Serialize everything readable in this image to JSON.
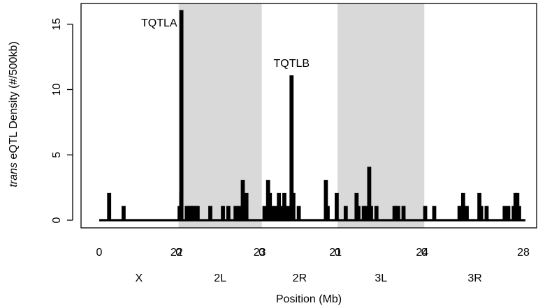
{
  "chart_data": {
    "type": "line",
    "ylabel": {
      "italic": "trans",
      "rest": " eQTL Density (#/500kb)"
    },
    "xlabel": "Position (Mb)",
    "ylim": [
      0,
      16
    ],
    "yticks": [
      0,
      5,
      10,
      15
    ],
    "colors": {
      "line": "#000000",
      "shade": "#d9d9d9"
    },
    "chromosomes": [
      {
        "name": "X",
        "length": 22,
        "shaded": false,
        "start_label": "0",
        "end_label": "22"
      },
      {
        "name": "2L",
        "length": 23,
        "shaded": true,
        "start_label": "0",
        "end_label": "23"
      },
      {
        "name": "2R",
        "length": 21,
        "shaded": false,
        "start_label": "0",
        "end_label": "21"
      },
      {
        "name": "3L",
        "length": 24,
        "shaded": true,
        "start_label": "0",
        "end_label": "24"
      },
      {
        "name": "3R",
        "length": 28,
        "shaded": false,
        "start_label": "0",
        "end_label": "28"
      }
    ],
    "peaks": [
      {
        "chrom": "X",
        "pos": 2.5,
        "count": 2
      },
      {
        "chrom": "X",
        "pos": 6.5,
        "count": 1
      },
      {
        "chrom": "X",
        "pos": 22.5,
        "count": 2
      },
      {
        "chrom": "2L",
        "pos": 0.0,
        "count": 1
      },
      {
        "chrom": "2L",
        "pos": 0.5,
        "count": 16
      },
      {
        "chrom": "2L",
        "pos": 2.0,
        "count": 1
      },
      {
        "chrom": "2L",
        "pos": 2.5,
        "count": 1
      },
      {
        "chrom": "2L",
        "pos": 3.0,
        "count": 1
      },
      {
        "chrom": "2L",
        "pos": 3.5,
        "count": 1
      },
      {
        "chrom": "2L",
        "pos": 4.0,
        "count": 1
      },
      {
        "chrom": "2L",
        "pos": 4.5,
        "count": 1
      },
      {
        "chrom": "2L",
        "pos": 5.0,
        "count": 1
      },
      {
        "chrom": "2L",
        "pos": 8.5,
        "count": 1
      },
      {
        "chrom": "2L",
        "pos": 12.0,
        "count": 1
      },
      {
        "chrom": "2L",
        "pos": 13.5,
        "count": 1
      },
      {
        "chrom": "2L",
        "pos": 15.5,
        "count": 1
      },
      {
        "chrom": "2L",
        "pos": 16.5,
        "count": 1
      },
      {
        "chrom": "2L",
        "pos": 17.5,
        "count": 3
      },
      {
        "chrom": "2L",
        "pos": 18.5,
        "count": 2
      },
      {
        "chrom": "2R",
        "pos": 0.5,
        "count": 1
      },
      {
        "chrom": "2R",
        "pos": 1.5,
        "count": 3
      },
      {
        "chrom": "2R",
        "pos": 2.0,
        "count": 2
      },
      {
        "chrom": "2R",
        "pos": 2.5,
        "count": 1
      },
      {
        "chrom": "2R",
        "pos": 3.5,
        "count": 1
      },
      {
        "chrom": "2R",
        "pos": 4.5,
        "count": 2
      },
      {
        "chrom": "2R",
        "pos": 5.0,
        "count": 1
      },
      {
        "chrom": "2R",
        "pos": 5.5,
        "count": 1
      },
      {
        "chrom": "2R",
        "pos": 6.0,
        "count": 2
      },
      {
        "chrom": "2R",
        "pos": 7.0,
        "count": 1
      },
      {
        "chrom": "2R",
        "pos": 8.0,
        "count": 11
      },
      {
        "chrom": "2R",
        "pos": 8.5,
        "count": 2
      },
      {
        "chrom": "2R",
        "pos": 10.0,
        "count": 1
      },
      {
        "chrom": "2R",
        "pos": 17.5,
        "count": 3
      },
      {
        "chrom": "2R",
        "pos": 18.0,
        "count": 1
      },
      {
        "chrom": "2R",
        "pos": 20.5,
        "count": 2
      },
      {
        "chrom": "3L",
        "pos": 2.0,
        "count": 1
      },
      {
        "chrom": "3L",
        "pos": 5.0,
        "count": 2
      },
      {
        "chrom": "3L",
        "pos": 5.5,
        "count": 1
      },
      {
        "chrom": "3L",
        "pos": 7.0,
        "count": 1
      },
      {
        "chrom": "3L",
        "pos": 7.5,
        "count": 1
      },
      {
        "chrom": "3L",
        "pos": 8.5,
        "count": 4
      },
      {
        "chrom": "3L",
        "pos": 9.0,
        "count": 1
      },
      {
        "chrom": "3L",
        "pos": 10.5,
        "count": 1
      },
      {
        "chrom": "3L",
        "pos": 15.5,
        "count": 1
      },
      {
        "chrom": "3L",
        "pos": 16.0,
        "count": 1
      },
      {
        "chrom": "3L",
        "pos": 16.5,
        "count": 1
      },
      {
        "chrom": "3L",
        "pos": 18.0,
        "count": 1
      },
      {
        "chrom": "3R",
        "pos": 0.0,
        "count": 1
      },
      {
        "chrom": "3R",
        "pos": 2.5,
        "count": 1
      },
      {
        "chrom": "3R",
        "pos": 9.5,
        "count": 1
      },
      {
        "chrom": "3R",
        "pos": 10.0,
        "count": 1
      },
      {
        "chrom": "3R",
        "pos": 10.5,
        "count": 2
      },
      {
        "chrom": "3R",
        "pos": 11.5,
        "count": 1
      },
      {
        "chrom": "3R",
        "pos": 15.0,
        "count": 2
      },
      {
        "chrom": "3R",
        "pos": 15.5,
        "count": 1
      },
      {
        "chrom": "3R",
        "pos": 17.0,
        "count": 1
      },
      {
        "chrom": "3R",
        "pos": 22.0,
        "count": 1
      },
      {
        "chrom": "3R",
        "pos": 23.0,
        "count": 1
      },
      {
        "chrom": "3R",
        "pos": 24.5,
        "count": 1
      },
      {
        "chrom": "3R",
        "pos": 25.0,
        "count": 2
      },
      {
        "chrom": "3R",
        "pos": 25.5,
        "count": 2
      },
      {
        "chrom": "3R",
        "pos": 26.0,
        "count": 1
      }
    ],
    "annotations": [
      {
        "text": "TQTLA",
        "chrom": "2L",
        "pos": 0.5,
        "count": 16
      },
      {
        "text": "TQTLB",
        "chrom": "2R",
        "pos": 8.0,
        "count": 11
      }
    ]
  }
}
